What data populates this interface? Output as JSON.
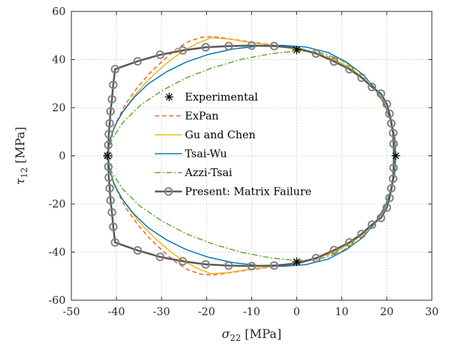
{
  "chart_data": {
    "type": "line",
    "xlabel_symbol": "σ",
    "xlabel_sub": "22",
    "xlabel_unit": " [MPa]",
    "ylabel_symbol": "τ",
    "ylabel_sub": "12",
    "ylabel_unit": " [MPa]",
    "xlim": [
      -50,
      30
    ],
    "ylim": [
      -60,
      60
    ],
    "xticks": [
      -50,
      -40,
      -30,
      -20,
      -10,
      0,
      10,
      20,
      30
    ],
    "yticks": [
      -60,
      -40,
      -20,
      0,
      20,
      40,
      60
    ],
    "grid": true,
    "legend_position": "center",
    "series": [
      {
        "name": "Experimental",
        "style": "marker",
        "marker": "asterisk",
        "color": "#000000",
        "points": [
          [
            -42,
            0
          ],
          [
            22,
            0
          ],
          [
            0,
            44
          ],
          [
            0,
            -44
          ]
        ]
      },
      {
        "name": "ExPan",
        "style": "dashed",
        "color": "#f05a28",
        "points": [
          [
            -42,
            0
          ],
          [
            -41.6,
            5
          ],
          [
            -40.8,
            10
          ],
          [
            -39.5,
            16
          ],
          [
            -37.8,
            22
          ],
          [
            -35.5,
            28
          ],
          [
            -32.8,
            34
          ],
          [
            -30,
            39
          ],
          [
            -27,
            44
          ],
          [
            -24,
            47.5
          ],
          [
            -21,
            49.3
          ],
          [
            -18.5,
            49.5
          ],
          [
            -16,
            48.9
          ],
          [
            -12,
            47.8
          ],
          [
            -8,
            46.8
          ],
          [
            -4,
            45.7
          ],
          [
            0,
            44.6
          ],
          [
            4,
            43
          ],
          [
            8,
            40.4
          ],
          [
            12,
            36.5
          ],
          [
            15,
            32
          ],
          [
            17.6,
            27
          ],
          [
            19.6,
            21
          ],
          [
            21,
            14
          ],
          [
            21.8,
            7
          ],
          [
            22,
            0
          ],
          [
            21.8,
            -7
          ],
          [
            21,
            -14
          ],
          [
            19.6,
            -21
          ],
          [
            17.6,
            -27
          ],
          [
            15,
            -32
          ],
          [
            12,
            -36.5
          ],
          [
            8,
            -40.4
          ],
          [
            4,
            -43
          ],
          [
            0,
            -44.6
          ],
          [
            -4,
            -45.7
          ],
          [
            -8,
            -46.8
          ],
          [
            -12,
            -47.8
          ],
          [
            -16,
            -48.9
          ],
          [
            -18.5,
            -49.5
          ],
          [
            -21,
            -49.3
          ],
          [
            -24,
            -47.5
          ],
          [
            -27,
            -44
          ],
          [
            -30,
            -39
          ],
          [
            -32.8,
            -34
          ],
          [
            -35.5,
            -28
          ],
          [
            -37.8,
            -22
          ],
          [
            -39.5,
            -16
          ],
          [
            -40.8,
            -10
          ],
          [
            -41.6,
            -5
          ],
          [
            -42,
            0
          ]
        ]
      },
      {
        "name": "Gu and Chen",
        "style": "solid",
        "color": "#f2b705",
        "points": [
          [
            -42,
            0
          ],
          [
            -41.6,
            5
          ],
          [
            -40.8,
            10
          ],
          [
            -39.6,
            15
          ],
          [
            -38,
            20
          ],
          [
            -36,
            25
          ],
          [
            -33.7,
            30
          ],
          [
            -31,
            35
          ],
          [
            -28,
            39.8
          ],
          [
            -25,
            43.8
          ],
          [
            -22,
            46.8
          ],
          [
            -19,
            49
          ],
          [
            -15,
            48.5
          ],
          [
            -10,
            47
          ],
          [
            -5,
            45.8
          ],
          [
            0,
            44.2
          ],
          [
            4,
            42.6
          ],
          [
            8,
            40.2
          ],
          [
            12,
            36.5
          ],
          [
            15,
            32
          ],
          [
            17.6,
            27
          ],
          [
            19.6,
            21
          ],
          [
            21,
            14
          ],
          [
            21.8,
            7
          ],
          [
            22,
            0
          ],
          [
            21.8,
            -7
          ],
          [
            21,
            -14
          ],
          [
            19.6,
            -21
          ],
          [
            17.6,
            -27
          ],
          [
            15,
            -32
          ],
          [
            12,
            -36.5
          ],
          [
            8,
            -40.2
          ],
          [
            4,
            -42.6
          ],
          [
            0,
            -44.2
          ],
          [
            -5,
            -45.8
          ],
          [
            -10,
            -47
          ],
          [
            -15,
            -48.5
          ],
          [
            -19,
            -49
          ],
          [
            -22,
            -46.8
          ],
          [
            -25,
            -43.8
          ],
          [
            -28,
            -39.8
          ],
          [
            -31,
            -35
          ],
          [
            -33.7,
            -30
          ],
          [
            -36,
            -25
          ],
          [
            -38,
            -20
          ],
          [
            -39.6,
            -15
          ],
          [
            -40.8,
            -10
          ],
          [
            -41.6,
            -5
          ],
          [
            -42,
            0
          ]
        ]
      },
      {
        "name": "Tsai-Wu",
        "style": "solid",
        "color": "#0072bd",
        "points": [
          [
            -42,
            0
          ],
          [
            -41.5,
            6
          ],
          [
            -40.5,
            12
          ],
          [
            -38.7,
            18
          ],
          [
            -36.2,
            24
          ],
          [
            -33,
            29.8
          ],
          [
            -29,
            34.8
          ],
          [
            -24.5,
            39
          ],
          [
            -19.5,
            42.2
          ],
          [
            -14,
            44.4
          ],
          [
            -8.5,
            45.6
          ],
          [
            -3,
            45.9
          ],
          [
            2,
            45.2
          ],
          [
            7,
            42.9
          ],
          [
            11,
            39
          ],
          [
            14.6,
            34
          ],
          [
            17.4,
            28
          ],
          [
            19.5,
            21.5
          ],
          [
            21,
            14
          ],
          [
            21.8,
            7
          ],
          [
            22,
            0
          ],
          [
            21.8,
            -7
          ],
          [
            21,
            -14
          ],
          [
            19.5,
            -21.5
          ],
          [
            17.4,
            -28
          ],
          [
            14.6,
            -34
          ],
          [
            11,
            -39
          ],
          [
            7,
            -42.9
          ],
          [
            2,
            -45.2
          ],
          [
            -3,
            -45.9
          ],
          [
            -8.5,
            -45.6
          ],
          [
            -14,
            -44.4
          ],
          [
            -19.5,
            -42.2
          ],
          [
            -24.5,
            -39
          ],
          [
            -29,
            -34.8
          ],
          [
            -33,
            -29.8
          ],
          [
            -36.2,
            -24
          ],
          [
            -38.7,
            -18
          ],
          [
            -40.5,
            -12
          ],
          [
            -41.5,
            -6
          ],
          [
            -42,
            0
          ]
        ]
      },
      {
        "name": "Azzi-Tsai",
        "style": "dashdot",
        "color": "#5ca81f",
        "points": [
          [
            -42,
            0
          ],
          [
            -41,
            7
          ],
          [
            -38.5,
            14
          ],
          [
            -34.7,
            21
          ],
          [
            -30,
            27
          ],
          [
            -24.5,
            32.4
          ],
          [
            -18.5,
            36.7
          ],
          [
            -12,
            40.2
          ],
          [
            -5.5,
            42.5
          ],
          [
            0,
            43.5
          ],
          [
            5,
            43
          ],
          [
            9.5,
            40.2
          ],
          [
            13.5,
            35.5
          ],
          [
            16.8,
            29.5
          ],
          [
            19.3,
            22.5
          ],
          [
            21,
            15
          ],
          [
            21.8,
            7.5
          ],
          [
            22,
            0
          ],
          [
            21.8,
            -7.5
          ],
          [
            21,
            -15
          ],
          [
            19.3,
            -22.5
          ],
          [
            16.8,
            -29.5
          ],
          [
            13.5,
            -35.5
          ],
          [
            9.5,
            -40.2
          ],
          [
            5,
            -43
          ],
          [
            0,
            -43.5
          ],
          [
            -5.5,
            -42.5
          ],
          [
            -12,
            -40.2
          ],
          [
            -18.5,
            -36.7
          ],
          [
            -24.5,
            -32.4
          ],
          [
            -30,
            -27
          ],
          [
            -34.7,
            -21
          ],
          [
            -38.5,
            -14
          ],
          [
            -41,
            -7
          ],
          [
            -42,
            0
          ]
        ]
      },
      {
        "name": "Present: Matrix Failure",
        "style": "solid-circle",
        "color": "#595959",
        "points": [
          [
            -41.8,
            0
          ],
          [
            -41.8,
            4.5
          ],
          [
            -41.7,
            9
          ],
          [
            -41.5,
            13.5
          ],
          [
            -41.3,
            18.5
          ],
          [
            -41,
            23.5
          ],
          [
            -40.7,
            29.5
          ],
          [
            -40.3,
            36
          ],
          [
            -35.3,
            39.3
          ],
          [
            -30.3,
            42
          ],
          [
            -25.3,
            43.8
          ],
          [
            -20.2,
            45.1
          ],
          [
            -15.1,
            45.6
          ],
          [
            -10,
            45.8
          ],
          [
            -5,
            45.6
          ],
          [
            0,
            44.8
          ],
          [
            4.3,
            42.5
          ],
          [
            8.3,
            39.2
          ],
          [
            11.7,
            36
          ],
          [
            14.4,
            32.5
          ],
          [
            16.7,
            28.6
          ],
          [
            18.7,
            25.8
          ],
          [
            20,
            21.5
          ],
          [
            20.6,
            17.5
          ],
          [
            21,
            13.5
          ],
          [
            21.4,
            9.5
          ],
          [
            21.5,
            5
          ],
          [
            21.6,
            0
          ],
          [
            21.5,
            -5
          ],
          [
            21.4,
            -9.5
          ],
          [
            21,
            -13.5
          ],
          [
            20.6,
            -17.5
          ],
          [
            20,
            -21.5
          ],
          [
            18.7,
            -25.8
          ],
          [
            16.7,
            -28.6
          ],
          [
            14.4,
            -32.5
          ],
          [
            11.7,
            -36
          ],
          [
            8.3,
            -39.2
          ],
          [
            4.3,
            -42.5
          ],
          [
            0,
            -44.8
          ],
          [
            -5,
            -45.6
          ],
          [
            -10,
            -45.8
          ],
          [
            -15.1,
            -45.6
          ],
          [
            -20.2,
            -45.1
          ],
          [
            -25.3,
            -43.8
          ],
          [
            -30.3,
            -42
          ],
          [
            -35.3,
            -39.3
          ],
          [
            -40.3,
            -36
          ],
          [
            -40.7,
            -29.5
          ],
          [
            -41,
            -23.5
          ],
          [
            -41.3,
            -18.5
          ],
          [
            -41.5,
            -13.5
          ],
          [
            -41.7,
            -9
          ],
          [
            -41.8,
            -4.5
          ],
          [
            -41.8,
            0
          ]
        ],
        "markers": [
          [
            -41.8,
            0
          ],
          [
            -41.8,
            4.5
          ],
          [
            -41.7,
            9
          ],
          [
            -41.5,
            13.5
          ],
          [
            -41.3,
            18.5
          ],
          [
            -41,
            23.5
          ],
          [
            -40.7,
            29.5
          ],
          [
            -40.3,
            36
          ],
          [
            -35.3,
            39.3
          ],
          [
            -30.3,
            42
          ],
          [
            -25.3,
            43.8
          ],
          [
            -20.2,
            45.1
          ],
          [
            -15.1,
            45.6
          ],
          [
            -10,
            45.8
          ],
          [
            -5,
            45.6
          ],
          [
            4.3,
            42.5
          ],
          [
            8.3,
            39.2
          ],
          [
            11.7,
            36
          ],
          [
            14.4,
            32.5
          ],
          [
            16.7,
            28.6
          ],
          [
            18.7,
            25.8
          ],
          [
            20,
            21.5
          ],
          [
            20.6,
            17.5
          ],
          [
            21,
            13.5
          ],
          [
            21.4,
            9.5
          ],
          [
            21.5,
            5
          ],
          [
            21.5,
            -5
          ],
          [
            21.4,
            -9.5
          ],
          [
            21,
            -13.5
          ],
          [
            20.6,
            -17.5
          ],
          [
            20,
            -21.5
          ],
          [
            18.7,
            -25.8
          ],
          [
            16.7,
            -28.6
          ],
          [
            14.4,
            -32.5
          ],
          [
            11.7,
            -36
          ],
          [
            8.3,
            -39.2
          ],
          [
            4.3,
            -42.5
          ],
          [
            -5,
            -45.6
          ],
          [
            -10,
            -45.8
          ],
          [
            -15.1,
            -45.6
          ],
          [
            -20.2,
            -45.1
          ],
          [
            -25.3,
            -43.8
          ],
          [
            -30.3,
            -42
          ],
          [
            -35.3,
            -39.3
          ],
          [
            -40.3,
            -36
          ],
          [
            -40.7,
            -29.5
          ],
          [
            -41,
            -23.5
          ],
          [
            -41.3,
            -18.5
          ],
          [
            -41.5,
            -13.5
          ],
          [
            -41.7,
            -9
          ],
          [
            -41.8,
            -4.5
          ]
        ]
      }
    ]
  }
}
